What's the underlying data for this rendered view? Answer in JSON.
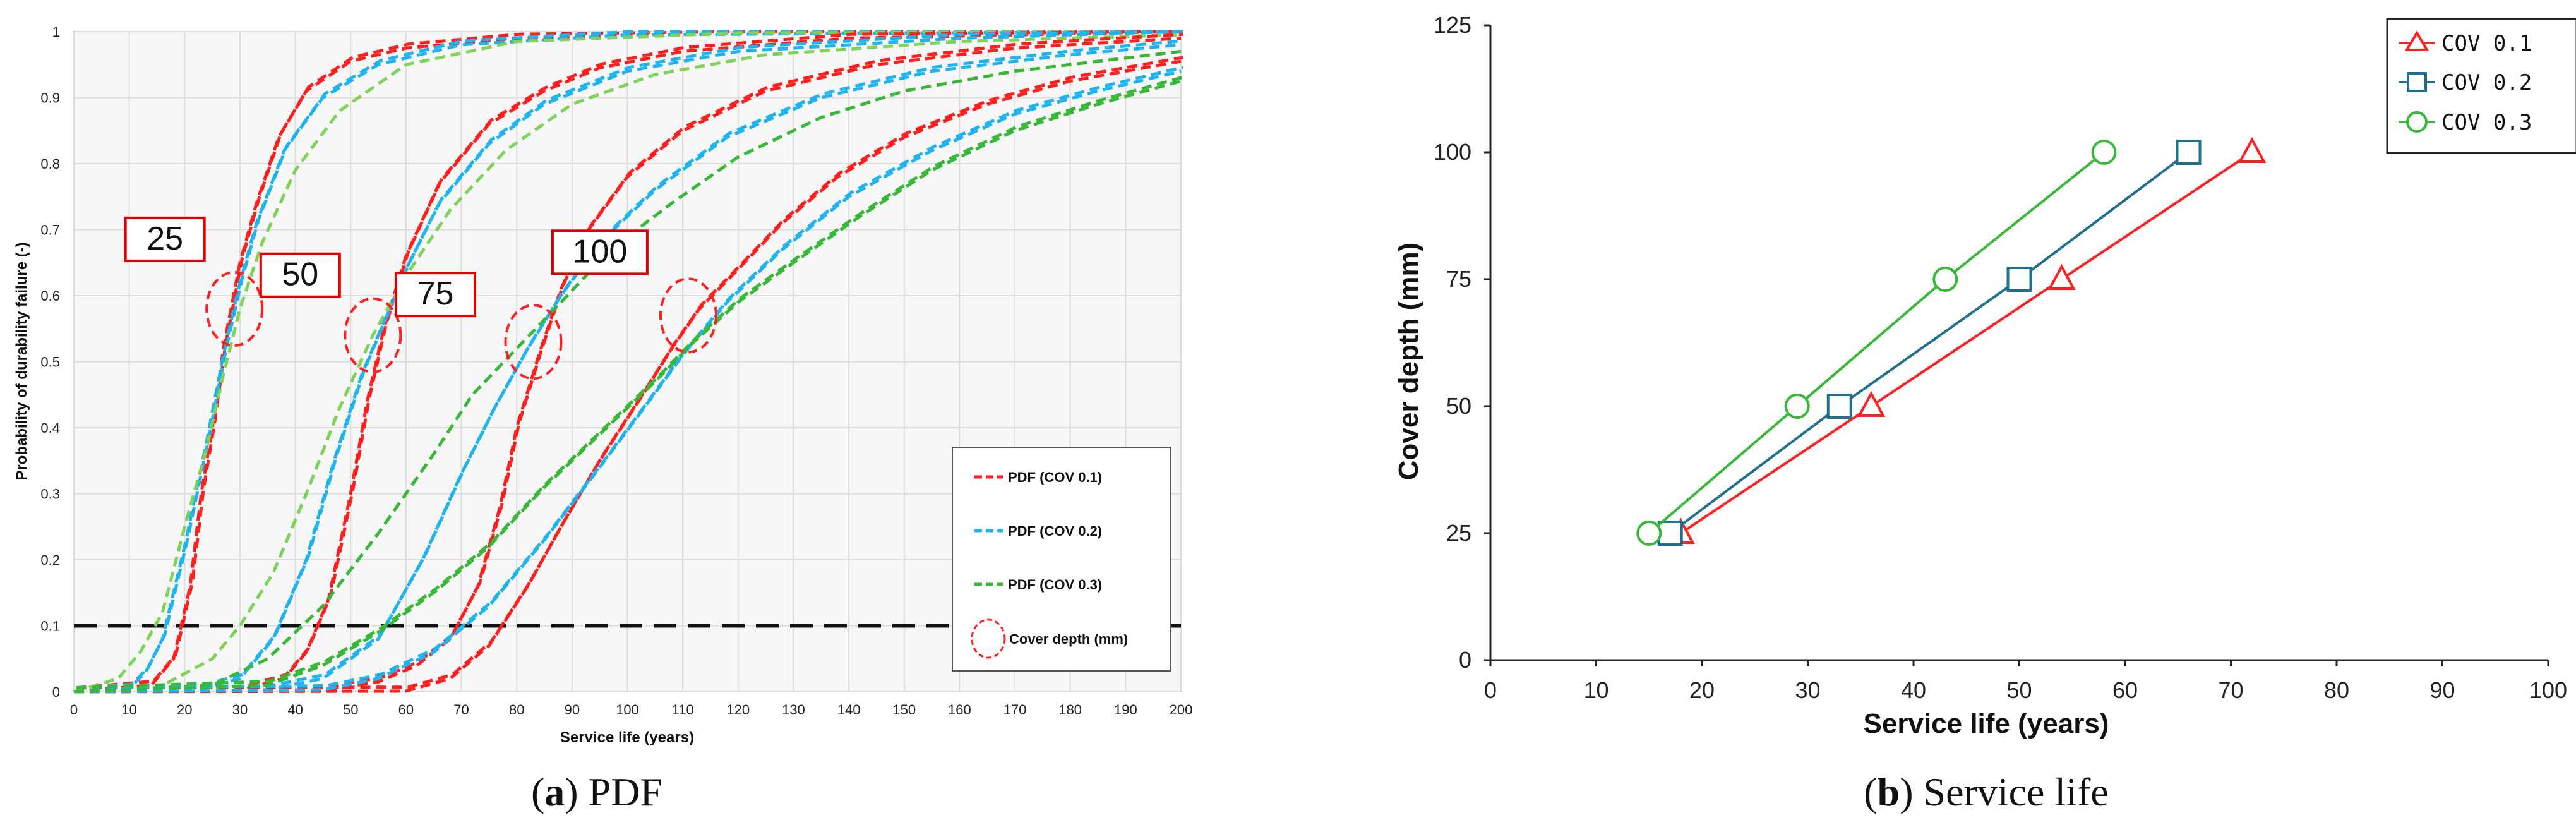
{
  "chart_data": [
    {
      "type": "line",
      "panel": "a",
      "caption_letter": "a",
      "caption_text": " PDF",
      "xlabel": "Service life (years)",
      "ylabel": "Probability of durability failure (-)",
      "xlim": [
        0,
        200
      ],
      "ylim": [
        0,
        1
      ],
      "x_ticks": [
        0,
        10,
        20,
        30,
        40,
        50,
        60,
        70,
        80,
        90,
        100,
        110,
        120,
        130,
        140,
        150,
        160,
        170,
        180,
        190,
        200
      ],
      "y_ticks": [
        0,
        0.1,
        0.2,
        0.3,
        0.4,
        0.5,
        0.6,
        0.7,
        0.8,
        0.9,
        1
      ],
      "y_tick_labels": [
        "0",
        "0.1",
        "0.2",
        "0.3",
        "0.4",
        "0.5",
        "0.6",
        "0.7",
        "0.8",
        "0.9",
        "1"
      ],
      "grid": true,
      "threshold": 0.1,
      "legend": [
        {
          "label": "PDF (COV 0.1)",
          "color": "#ff1f1f",
          "style": "dashed"
        },
        {
          "label": "PDF (COV 0.2)",
          "color": "#1fb4f0",
          "style": "dashed"
        },
        {
          "label": "PDF (COV 0.3)",
          "color": "#37b837",
          "style": "dashed"
        },
        {
          "label": "Cover depth (mm)",
          "color": "#ff1f1f",
          "style": "circle"
        }
      ],
      "cover_depths": [
        {
          "label": "25",
          "x": 29,
          "y": 0.58
        },
        {
          "label": "50",
          "x": 54,
          "y": 0.54
        },
        {
          "label": "75",
          "x": 83,
          "y": 0.53
        },
        {
          "label": "100",
          "x": 111,
          "y": 0.57
        }
      ],
      "series": [
        {
          "name": "PDF (COV 0.1)",
          "color": "#ff1f1f",
          "group": "25",
          "lines": 2,
          "points": [
            [
              0,
              0
            ],
            [
              14,
              0.01
            ],
            [
              18,
              0.05
            ],
            [
              21,
              0.16
            ],
            [
              23,
              0.3
            ],
            [
              25,
              0.4
            ],
            [
              27,
              0.52
            ],
            [
              30,
              0.65
            ],
            [
              33,
              0.74
            ],
            [
              37,
              0.84
            ],
            [
              42,
              0.91
            ],
            [
              50,
              0.955
            ],
            [
              60,
              0.975
            ],
            [
              80,
              0.99
            ],
            [
              120,
              0.998
            ],
            [
              200,
              1.0
            ]
          ]
        },
        {
          "name": "PDF (COV 0.2)",
          "color": "#1fb4f0",
          "group": "25",
          "lines": 2,
          "points": [
            [
              0,
              0
            ],
            [
              10,
              0.005
            ],
            [
              13,
              0.03
            ],
            [
              16,
              0.08
            ],
            [
              20,
              0.22
            ],
            [
              24,
              0.38
            ],
            [
              27,
              0.51
            ],
            [
              30,
              0.62
            ],
            [
              33,
              0.71
            ],
            [
              38,
              0.82
            ],
            [
              45,
              0.9
            ],
            [
              55,
              0.95
            ],
            [
              70,
              0.98
            ],
            [
              100,
              0.995
            ],
            [
              200,
              1.0
            ]
          ]
        },
        {
          "name": "PDF (COV 0.3)",
          "color": "#7fd35a",
          "group": "25",
          "lines": 1,
          "points": [
            [
              0,
              0
            ],
            [
              8,
              0.02
            ],
            [
              12,
              0.06
            ],
            [
              16,
              0.12
            ],
            [
              20,
              0.25
            ],
            [
              24,
              0.37
            ],
            [
              27,
              0.48
            ],
            [
              30,
              0.58
            ],
            [
              34,
              0.68
            ],
            [
              40,
              0.79
            ],
            [
              48,
              0.88
            ],
            [
              60,
              0.95
            ],
            [
              80,
              0.985
            ],
            [
              120,
              0.998
            ],
            [
              200,
              1.0
            ]
          ]
        },
        {
          "name": "PDF (COV 0.1)",
          "color": "#ff1f1f",
          "group": "50",
          "lines": 2,
          "points": [
            [
              0,
              0
            ],
            [
              30,
              0.002
            ],
            [
              38,
              0.02
            ],
            [
              42,
              0.06
            ],
            [
              46,
              0.14
            ],
            [
              50,
              0.3
            ],
            [
              53,
              0.44
            ],
            [
              56,
              0.55
            ],
            [
              60,
              0.66
            ],
            [
              66,
              0.77
            ],
            [
              75,
              0.86
            ],
            [
              85,
              0.91
            ],
            [
              95,
              0.945
            ],
            [
              110,
              0.97
            ],
            [
              140,
              0.99
            ],
            [
              200,
              1.0
            ]
          ]
        },
        {
          "name": "PDF (COV 0.2)",
          "color": "#1fb4f0",
          "group": "50",
          "lines": 2,
          "points": [
            [
              0,
              0
            ],
            [
              22,
              0.002
            ],
            [
              30,
              0.02
            ],
            [
              36,
              0.08
            ],
            [
              42,
              0.2
            ],
            [
              47,
              0.35
            ],
            [
              52,
              0.48
            ],
            [
              56,
              0.56
            ],
            [
              60,
              0.64
            ],
            [
              66,
              0.74
            ],
            [
              75,
              0.83
            ],
            [
              85,
              0.89
            ],
            [
              100,
              0.94
            ],
            [
              120,
              0.97
            ],
            [
              160,
              0.99
            ],
            [
              200,
              1.0
            ]
          ]
        },
        {
          "name": "PDF (COV 0.3)",
          "color": "#7fd35a",
          "group": "50",
          "lines": 1,
          "points": [
            [
              0,
              0
            ],
            [
              15,
              0.005
            ],
            [
              25,
              0.05
            ],
            [
              30,
              0.1
            ],
            [
              36,
              0.18
            ],
            [
              42,
              0.3
            ],
            [
              48,
              0.43
            ],
            [
              54,
              0.54
            ],
            [
              60,
              0.63
            ],
            [
              68,
              0.73
            ],
            [
              78,
              0.82
            ],
            [
              90,
              0.89
            ],
            [
              105,
              0.935
            ],
            [
              125,
              0.965
            ],
            [
              160,
              0.985
            ],
            [
              200,
              0.995
            ]
          ]
        },
        {
          "name": "PDF (COV 0.1)",
          "color": "#ff1f1f",
          "group": "75",
          "lines": 2,
          "points": [
            [
              0,
              0
            ],
            [
              45,
              0.002
            ],
            [
              55,
              0.015
            ],
            [
              62,
              0.04
            ],
            [
              68,
              0.08
            ],
            [
              73,
              0.16
            ],
            [
              77,
              0.28
            ],
            [
              80,
              0.4
            ],
            [
              84,
              0.51
            ],
            [
              88,
              0.61
            ],
            [
              93,
              0.7
            ],
            [
              100,
              0.78
            ],
            [
              110,
              0.85
            ],
            [
              125,
              0.91
            ],
            [
              145,
              0.95
            ],
            [
              170,
              0.975
            ],
            [
              200,
              0.99
            ]
          ]
        },
        {
          "name": "PDF (COV 0.2)",
          "color": "#1fb4f0",
          "group": "75",
          "lines": 2,
          "points": [
            [
              0,
              0
            ],
            [
              35,
              0.003
            ],
            [
              45,
              0.02
            ],
            [
              55,
              0.08
            ],
            [
              63,
              0.2
            ],
            [
              70,
              0.33
            ],
            [
              76,
              0.43
            ],
            [
              82,
              0.52
            ],
            [
              88,
              0.6
            ],
            [
              95,
              0.68
            ],
            [
              105,
              0.76
            ],
            [
              118,
              0.84
            ],
            [
              135,
              0.9
            ],
            [
              155,
              0.94
            ],
            [
              180,
              0.965
            ],
            [
              200,
              0.98
            ]
          ]
        },
        {
          "name": "PDF (COV 0.3)",
          "color": "#37b837",
          "group": "75",
          "lines": 1,
          "points": [
            [
              0,
              0
            ],
            [
              25,
              0.01
            ],
            [
              35,
              0.05
            ],
            [
              45,
              0.13
            ],
            [
              55,
              0.24
            ],
            [
              65,
              0.36
            ],
            [
              72,
              0.45
            ],
            [
              80,
              0.52
            ],
            [
              88,
              0.59
            ],
            [
              97,
              0.67
            ],
            [
              108,
              0.74
            ],
            [
              120,
              0.81
            ],
            [
              135,
              0.87
            ],
            [
              150,
              0.91
            ],
            [
              170,
              0.94
            ],
            [
              200,
              0.97
            ]
          ]
        },
        {
          "name": "PDF (COV 0.1)",
          "color": "#ff1f1f",
          "group": "100",
          "lines": 2,
          "points": [
            [
              0,
              0
            ],
            [
              60,
              0.001
            ],
            [
              68,
              0.02
            ],
            [
              75,
              0.07
            ],
            [
              82,
              0.16
            ],
            [
              88,
              0.25
            ],
            [
              95,
              0.35
            ],
            [
              102,
              0.44
            ],
            [
              108,
              0.52
            ],
            [
              113,
              0.58
            ],
            [
              120,
              0.64
            ],
            [
              128,
              0.71
            ],
            [
              138,
              0.78
            ],
            [
              150,
              0.84
            ],
            [
              165,
              0.89
            ],
            [
              180,
              0.925
            ],
            [
              200,
              0.955
            ]
          ]
        },
        {
          "name": "PDF (COV 0.2)",
          "color": "#1fb4f0",
          "group": "100",
          "lines": 2,
          "points": [
            [
              0,
              0
            ],
            [
              45,
              0.003
            ],
            [
              55,
              0.02
            ],
            [
              65,
              0.06
            ],
            [
              75,
              0.13
            ],
            [
              85,
              0.23
            ],
            [
              95,
              0.34
            ],
            [
              103,
              0.43
            ],
            [
              110,
              0.51
            ],
            [
              118,
              0.59
            ],
            [
              128,
              0.67
            ],
            [
              140,
              0.75
            ],
            [
              155,
              0.82
            ],
            [
              170,
              0.875
            ],
            [
              185,
              0.91
            ],
            [
              200,
              0.94
            ]
          ]
        },
        {
          "name": "PDF (COV 0.3)",
          "color": "#37b837",
          "group": "100",
          "lines": 2,
          "points": [
            [
              0,
              0
            ],
            [
              35,
              0.01
            ],
            [
              45,
              0.04
            ],
            [
              55,
              0.09
            ],
            [
              65,
              0.15
            ],
            [
              75,
              0.22
            ],
            [
              85,
              0.31
            ],
            [
              95,
              0.39
            ],
            [
              105,
              0.47
            ],
            [
              112,
              0.53
            ],
            [
              120,
              0.59
            ],
            [
              130,
              0.65
            ],
            [
              142,
              0.72
            ],
            [
              155,
              0.79
            ],
            [
              170,
              0.85
            ],
            [
              185,
              0.89
            ],
            [
              200,
              0.925
            ]
          ]
        }
      ]
    },
    {
      "type": "line",
      "panel": "b",
      "caption_letter": "b",
      "caption_text": " Service life",
      "xlabel": "Service life (years)",
      "ylabel": "Cover depth (mm)",
      "xlim": [
        0,
        100
      ],
      "ylim": [
        0,
        125
      ],
      "x_ticks": [
        0,
        10,
        20,
        30,
        40,
        50,
        60,
        70,
        80,
        90,
        100
      ],
      "y_ticks": [
        0,
        25,
        50,
        75,
        100,
        125
      ],
      "grid": false,
      "legend_placement": "top-right",
      "series": [
        {
          "name": "COV 0.1",
          "color": "#ff1f1f",
          "marker": "triangle",
          "x": [
            18,
            36,
            54,
            72
          ],
          "y": [
            25,
            50,
            75,
            100
          ]
        },
        {
          "name": "COV 0.2",
          "color": "#1f6f8f",
          "marker": "square",
          "x": [
            17,
            33,
            50,
            66
          ],
          "y": [
            25,
            50,
            75,
            100
          ]
        },
        {
          "name": "COV 0.3",
          "color": "#37b837",
          "marker": "circle",
          "x": [
            15,
            29,
            43,
            58
          ],
          "y": [
            25,
            50,
            75,
            100
          ]
        }
      ]
    }
  ]
}
